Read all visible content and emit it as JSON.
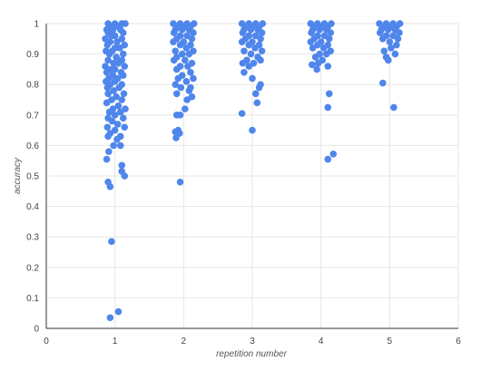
{
  "chart_data": {
    "type": "scatter",
    "title": "",
    "xlabel": "repetition number",
    "ylabel": "accuracy",
    "xlim": [
      0,
      6
    ],
    "ylim": [
      0,
      1
    ],
    "x_ticks": [
      "0",
      "1",
      "2",
      "3",
      "4",
      "5",
      "6"
    ],
    "y_ticks": [
      "0",
      "0.1",
      "0.2",
      "0.3",
      "0.4",
      "0.5",
      "0.6",
      "0.7",
      "0.8",
      "0.9",
      "1"
    ],
    "grid": true,
    "legend": "none",
    "series": [
      {
        "color": "#4f86ec",
        "points": [
          [
            0.9,
            1.0
          ],
          [
            1.0,
            1.0
          ],
          [
            1.1,
            1.0
          ],
          [
            1.15,
            1.0
          ],
          [
            0.92,
            0.99
          ],
          [
            1.05,
            0.99
          ],
          [
            0.88,
            0.98
          ],
          [
            0.97,
            0.98
          ],
          [
            1.08,
            0.98
          ],
          [
            1.12,
            0.97
          ],
          [
            0.9,
            0.97
          ],
          [
            1.0,
            0.96
          ],
          [
            0.95,
            0.96
          ],
          [
            1.1,
            0.95
          ],
          [
            0.86,
            0.95
          ],
          [
            1.03,
            0.94
          ],
          [
            0.93,
            0.94
          ],
          [
            1.14,
            0.93
          ],
          [
            0.89,
            0.93
          ],
          [
            1.0,
            0.92
          ],
          [
            1.07,
            0.92
          ],
          [
            0.96,
            0.91
          ],
          [
            0.87,
            0.91
          ],
          [
            1.12,
            0.9
          ],
          [
            0.92,
            0.9
          ],
          [
            1.02,
            0.89
          ],
          [
            0.9,
            0.88
          ],
          [
            1.1,
            0.88
          ],
          [
            0.98,
            0.87
          ],
          [
            1.05,
            0.87
          ],
          [
            0.86,
            0.86
          ],
          [
            1.14,
            0.86
          ],
          [
            0.94,
            0.85
          ],
          [
            1.0,
            0.85
          ],
          [
            1.09,
            0.84
          ],
          [
            0.88,
            0.84
          ],
          [
            0.97,
            0.83
          ],
          [
            1.12,
            0.83
          ],
          [
            0.91,
            0.82
          ],
          [
            1.04,
            0.82
          ],
          [
            0.87,
            0.81
          ],
          [
            1.0,
            0.81
          ],
          [
            1.1,
            0.8
          ],
          [
            0.93,
            0.8
          ],
          [
            1.06,
            0.79
          ],
          [
            0.89,
            0.79
          ],
          [
            0.98,
            0.78
          ],
          [
            1.13,
            0.77
          ],
          [
            0.9,
            0.77
          ],
          [
            1.02,
            0.76
          ],
          [
            0.95,
            0.75
          ],
          [
            1.1,
            0.75
          ],
          [
            0.88,
            0.74
          ],
          [
            1.05,
            0.73
          ],
          [
            0.97,
            0.72
          ],
          [
            1.15,
            0.72
          ],
          [
            0.92,
            0.71
          ],
          [
            1.08,
            0.71
          ],
          [
            1.0,
            0.7
          ],
          [
            0.9,
            0.69
          ],
          [
            1.12,
            0.69
          ],
          [
            0.96,
            0.68
          ],
          [
            1.04,
            0.67
          ],
          [
            0.89,
            0.66
          ],
          [
            1.14,
            0.66
          ],
          [
            1.0,
            0.65
          ],
          [
            0.93,
            0.64
          ],
          [
            1.08,
            0.63
          ],
          [
            0.9,
            0.63
          ],
          [
            1.03,
            0.62
          ],
          [
            0.98,
            0.6
          ],
          [
            1.08,
            0.6
          ],
          [
            0.91,
            0.58
          ],
          [
            0.88,
            0.555
          ],
          [
            1.1,
            0.535
          ],
          [
            1.1,
            0.515
          ],
          [
            1.14,
            0.5
          ],
          [
            0.9,
            0.48
          ],
          [
            0.93,
            0.465
          ],
          [
            0.95,
            0.285
          ],
          [
            1.05,
            0.055
          ],
          [
            0.93,
            0.035
          ],
          [
            1.85,
            1.0
          ],
          [
            1.95,
            1.0
          ],
          [
            2.05,
            1.0
          ],
          [
            2.15,
            1.0
          ],
          [
            1.9,
            0.99
          ],
          [
            2.0,
            0.99
          ],
          [
            2.1,
            0.99
          ],
          [
            1.88,
            0.98
          ],
          [
            1.98,
            0.98
          ],
          [
            2.08,
            0.98
          ],
          [
            2.14,
            0.97
          ],
          [
            1.86,
            0.97
          ],
          [
            1.95,
            0.96
          ],
          [
            2.05,
            0.96
          ],
          [
            2.12,
            0.95
          ],
          [
            1.9,
            0.95
          ],
          [
            2.0,
            0.94
          ],
          [
            1.85,
            0.94
          ],
          [
            2.1,
            0.93
          ],
          [
            1.95,
            0.93
          ],
          [
            2.04,
            0.92
          ],
          [
            1.88,
            0.91
          ],
          [
            2.14,
            0.91
          ],
          [
            1.98,
            0.9
          ],
          [
            2.08,
            0.9
          ],
          [
            1.9,
            0.89
          ],
          [
            2.02,
            0.88
          ],
          [
            1.86,
            0.88
          ],
          [
            2.12,
            0.87
          ],
          [
            1.95,
            0.86
          ],
          [
            2.06,
            0.86
          ],
          [
            1.9,
            0.85
          ],
          [
            2.1,
            0.84
          ],
          [
            1.98,
            0.83
          ],
          [
            2.14,
            0.82
          ],
          [
            1.92,
            0.82
          ],
          [
            2.04,
            0.81
          ],
          [
            1.88,
            0.8
          ],
          [
            2.1,
            0.79
          ],
          [
            1.96,
            0.79
          ],
          [
            2.08,
            0.78
          ],
          [
            1.9,
            0.77
          ],
          [
            2.12,
            0.76
          ],
          [
            2.05,
            0.75
          ],
          [
            2.02,
            0.72
          ],
          [
            1.95,
            0.7
          ],
          [
            1.9,
            0.7
          ],
          [
            1.88,
            0.645
          ],
          [
            1.92,
            0.65
          ],
          [
            1.94,
            0.64
          ],
          [
            1.89,
            0.625
          ],
          [
            1.95,
            0.48
          ],
          [
            2.85,
            1.0
          ],
          [
            2.95,
            1.0
          ],
          [
            3.05,
            1.0
          ],
          [
            3.15,
            1.0
          ],
          [
            2.9,
            0.99
          ],
          [
            3.0,
            0.99
          ],
          [
            3.1,
            0.99
          ],
          [
            2.88,
            0.98
          ],
          [
            2.98,
            0.98
          ],
          [
            3.08,
            0.98
          ],
          [
            3.14,
            0.97
          ],
          [
            2.86,
            0.97
          ],
          [
            2.95,
            0.96
          ],
          [
            3.05,
            0.96
          ],
          [
            3.12,
            0.95
          ],
          [
            2.9,
            0.95
          ],
          [
            3.0,
            0.94
          ],
          [
            2.85,
            0.94
          ],
          [
            3.1,
            0.93
          ],
          [
            2.95,
            0.93
          ],
          [
            3.04,
            0.92
          ],
          [
            2.88,
            0.91
          ],
          [
            3.14,
            0.91
          ],
          [
            2.98,
            0.9
          ],
          [
            3.08,
            0.89
          ],
          [
            2.92,
            0.88
          ],
          [
            3.02,
            0.87
          ],
          [
            2.86,
            0.87
          ],
          [
            3.12,
            0.88
          ],
          [
            2.95,
            0.86
          ],
          [
            2.88,
            0.84
          ],
          [
            3.0,
            0.82
          ],
          [
            3.12,
            0.8
          ],
          [
            3.1,
            0.79
          ],
          [
            3.05,
            0.77
          ],
          [
            3.07,
            0.74
          ],
          [
            2.85,
            0.705
          ],
          [
            3.0,
            0.65
          ],
          [
            3.85,
            1.0
          ],
          [
            3.95,
            1.0
          ],
          [
            4.05,
            1.0
          ],
          [
            4.15,
            1.0
          ],
          [
            3.9,
            0.99
          ],
          [
            4.0,
            0.99
          ],
          [
            4.1,
            0.99
          ],
          [
            3.88,
            0.98
          ],
          [
            3.98,
            0.98
          ],
          [
            4.08,
            0.98
          ],
          [
            4.14,
            0.97
          ],
          [
            3.86,
            0.97
          ],
          [
            3.95,
            0.96
          ],
          [
            4.05,
            0.96
          ],
          [
            4.12,
            0.95
          ],
          [
            3.9,
            0.95
          ],
          [
            4.0,
            0.94
          ],
          [
            3.85,
            0.94
          ],
          [
            4.1,
            0.93
          ],
          [
            3.95,
            0.93
          ],
          [
            4.04,
            0.92
          ],
          [
            3.88,
            0.92
          ],
          [
            4.14,
            0.91
          ],
          [
            3.98,
            0.9
          ],
          [
            4.08,
            0.9
          ],
          [
            3.92,
            0.89
          ],
          [
            4.02,
            0.88
          ],
          [
            3.96,
            0.87
          ],
          [
            4.1,
            0.86
          ],
          [
            3.87,
            0.865
          ],
          [
            3.94,
            0.85
          ],
          [
            4.12,
            0.77
          ],
          [
            4.1,
            0.725
          ],
          [
            4.18,
            0.572
          ],
          [
            4.1,
            0.555
          ],
          [
            4.85,
            1.0
          ],
          [
            4.95,
            1.0
          ],
          [
            5.05,
            1.0
          ],
          [
            5.15,
            1.0
          ],
          [
            4.9,
            0.99
          ],
          [
            5.0,
            0.99
          ],
          [
            5.1,
            0.99
          ],
          [
            4.88,
            0.98
          ],
          [
            4.98,
            0.98
          ],
          [
            5.08,
            0.98
          ],
          [
            5.14,
            0.97
          ],
          [
            4.86,
            0.97
          ],
          [
            4.95,
            0.96
          ],
          [
            5.05,
            0.96
          ],
          [
            5.12,
            0.95
          ],
          [
            4.9,
            0.95
          ],
          [
            5.0,
            0.94
          ],
          [
            5.1,
            0.93
          ],
          [
            5.02,
            0.92
          ],
          [
            4.92,
            0.91
          ],
          [
            5.08,
            0.9
          ],
          [
            4.95,
            0.89
          ],
          [
            4.98,
            0.88
          ],
          [
            4.9,
            0.805
          ],
          [
            5.06,
            0.725
          ]
        ]
      }
    ]
  }
}
